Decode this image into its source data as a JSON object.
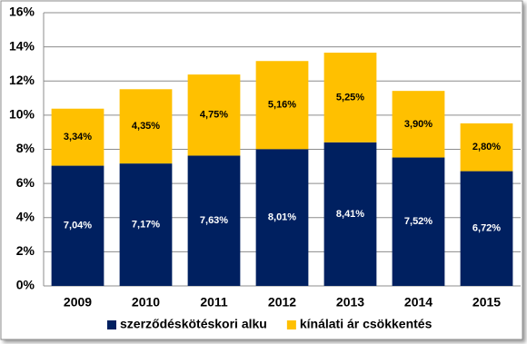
{
  "chart_data": {
    "type": "stacked_bar",
    "categories": [
      "2009",
      "2010",
      "2011",
      "2012",
      "2013",
      "2014",
      "2015"
    ],
    "series": [
      {
        "name": "szerződéskötéskori alku",
        "color": "#002060",
        "values": [
          7.04,
          7.17,
          7.63,
          8.01,
          8.41,
          7.52,
          6.72
        ],
        "value_labels": [
          "7,04%",
          "7,17%",
          "7,63%",
          "8,01%",
          "8,41%",
          "7,52%",
          "6,72%"
        ]
      },
      {
        "name": "kínálati ár csökkentés",
        "color": "#ffc000",
        "values": [
          3.34,
          4.35,
          4.75,
          5.16,
          5.25,
          3.9,
          2.8
        ],
        "value_labels": [
          "3,34%",
          "4,35%",
          "4,75%",
          "5,16%",
          "5,25%",
          "3,90%",
          "2,80%"
        ]
      }
    ],
    "ylim": [
      0,
      16
    ],
    "yticks": [
      {
        "value": 0,
        "label": "0%"
      },
      {
        "value": 2,
        "label": "2%"
      },
      {
        "value": 4,
        "label": "4%"
      },
      {
        "value": 6,
        "label": "6%"
      },
      {
        "value": 8,
        "label": "8%"
      },
      {
        "value": 10,
        "label": "10%"
      },
      {
        "value": 12,
        "label": "12%"
      },
      {
        "value": 14,
        "label": "14%"
      },
      {
        "value": 16,
        "label": "16%"
      }
    ],
    "grid": true,
    "legend": "bottom"
  }
}
